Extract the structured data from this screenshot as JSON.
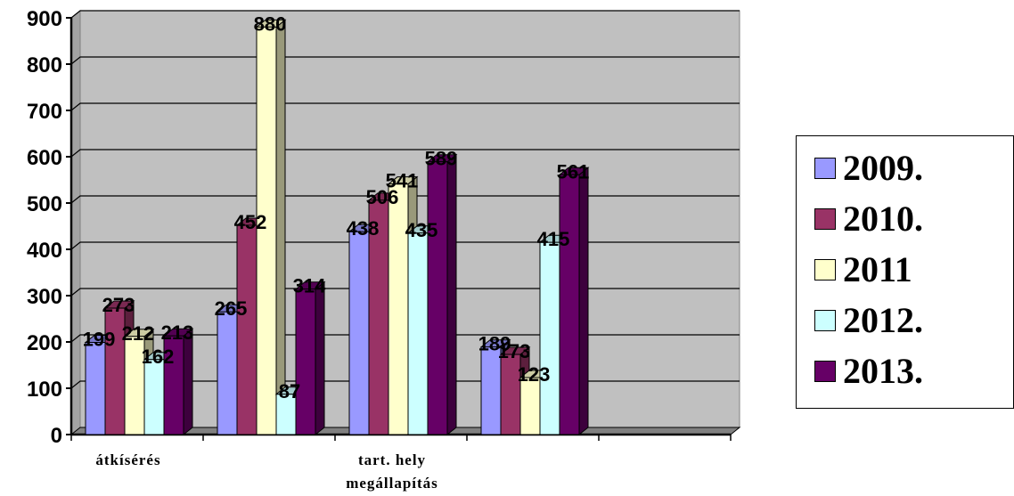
{
  "chart_data": {
    "type": "bar",
    "title": "",
    "xlabel": "",
    "ylabel": "",
    "ylim": [
      0,
      900
    ],
    "yticks": [
      0,
      100,
      200,
      300,
      400,
      500,
      600,
      700,
      800,
      900
    ],
    "grid": true,
    "legend_position": "right",
    "categories": [
      "átkísérés",
      "",
      "tart. hely megállapítás",
      "",
      ""
    ],
    "category_lines": [
      [
        "átkísérés"
      ],
      [],
      [
        "tart. hely",
        "megállapítás"
      ],
      [],
      []
    ],
    "series": [
      {
        "name": "2009.",
        "color": "#9999ff",
        "values": [
          199,
          265,
          438,
          189,
          null
        ],
        "labels": [
          "199",
          "265",
          "438",
          "189",
          ""
        ]
      },
      {
        "name": "2010.",
        "color": "#993366",
        "values": [
          273,
          452,
          506,
          173,
          null
        ],
        "labels": [
          "273",
          "452",
          "506",
          "173",
          ""
        ]
      },
      {
        "name": "2011",
        "color": "#ffffcc",
        "values": [
          212,
          880,
          541,
          123,
          null
        ],
        "labels": [
          "212",
          "880",
          "541",
          "123",
          ""
        ]
      },
      {
        "name": "2012.",
        "color": "#ccffff",
        "values": [
          162,
          87,
          435,
          415,
          null
        ],
        "labels": [
          "162",
          "87",
          "435",
          "415",
          ""
        ]
      },
      {
        "name": "2013.",
        "color": "#660066",
        "values": [
          213,
          314,
          589,
          561,
          null
        ],
        "labels": [
          "213",
          "314",
          "589",
          "561",
          ""
        ]
      }
    ]
  },
  "colors": {
    "wall": "#c0c0c0",
    "floor": "#808080",
    "gridline": "#000000"
  }
}
